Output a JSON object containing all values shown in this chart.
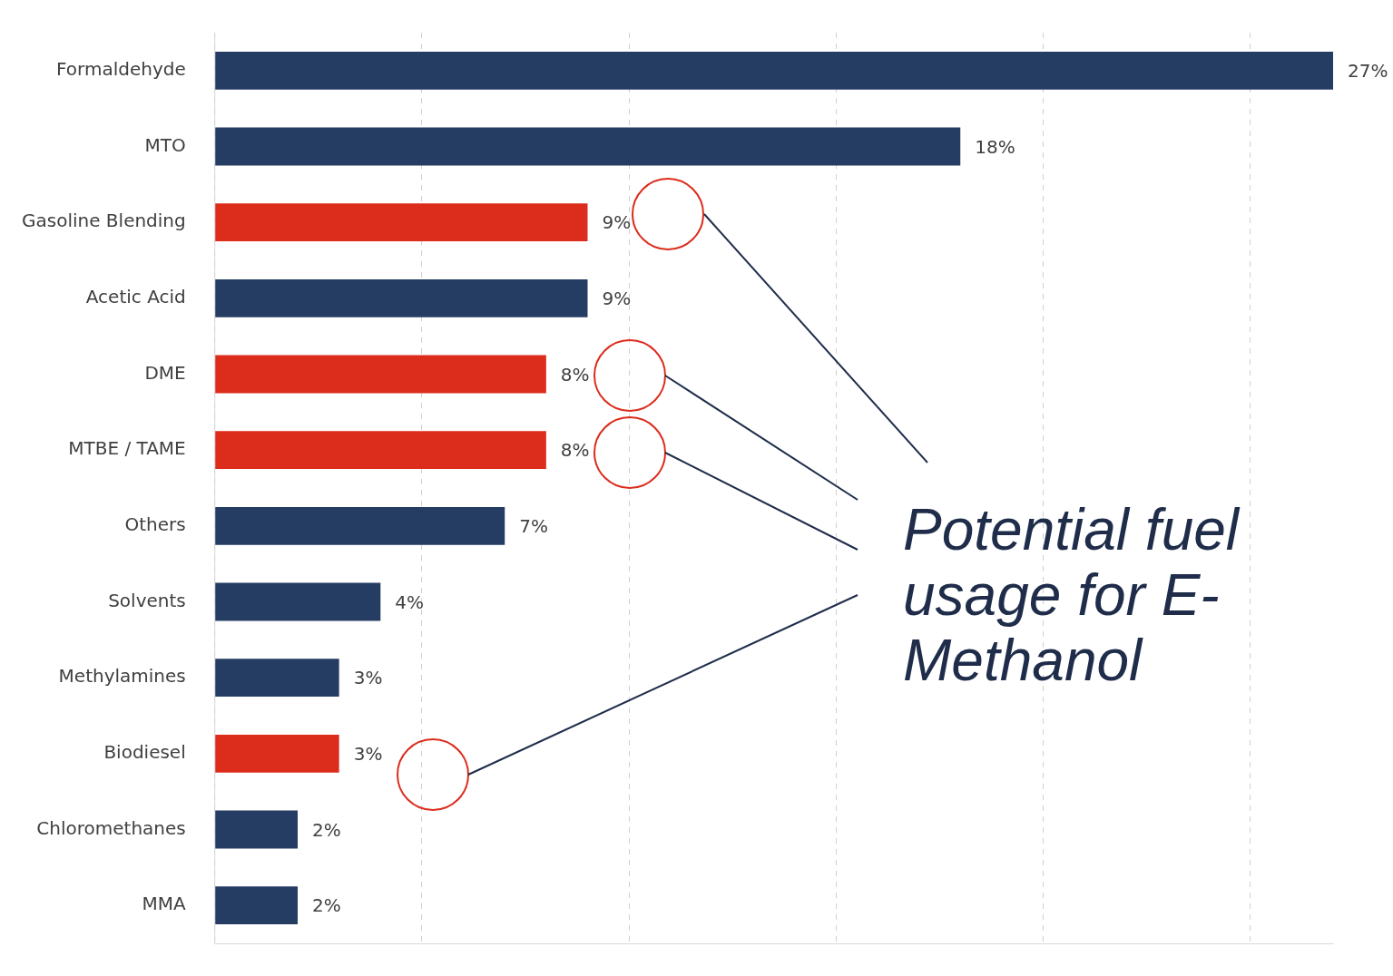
{
  "chart_data": {
    "type": "bar",
    "orientation": "horizontal",
    "categories": [
      "Formaldehyde",
      "MTO",
      "Gasoline Blending",
      "Acetic Acid",
      "DME",
      "MTBE / TAME",
      "Others",
      "Solvents",
      "Methylamines",
      "Biodiesel",
      "Chloromethanes",
      "MMA"
    ],
    "values": [
      27,
      18,
      9,
      9,
      8,
      8,
      7,
      4,
      3,
      3,
      2,
      2
    ],
    "value_labels": [
      "27%",
      "18%",
      "9%",
      "9%",
      "8%",
      "8%",
      "7%",
      "4%",
      "3%",
      "3%",
      "2%",
      "2%"
    ],
    "colors": [
      "#253d63",
      "#253d63",
      "#dc2c1c",
      "#253d63",
      "#dc2c1c",
      "#dc2c1c",
      "#253d63",
      "#253d63",
      "#253d63",
      "#dc2c1c",
      "#253d63",
      "#253d63"
    ],
    "xlim": [
      0,
      27
    ],
    "xticks": [
      {
        "value": 0,
        "label": null
      },
      {
        "value": 5,
        "label": null
      },
      {
        "value": 10,
        "label": null
      },
      {
        "value": 15,
        "label": null
      },
      {
        "value": 20,
        "label": null
      },
      {
        "value": 25,
        "label": null
      }
    ],
    "tick_labels": "y",
    "grid": "x",
    "legend": false,
    "annotations": [
      "Potential fuel usage for E-Methanol"
    ]
  }
}
